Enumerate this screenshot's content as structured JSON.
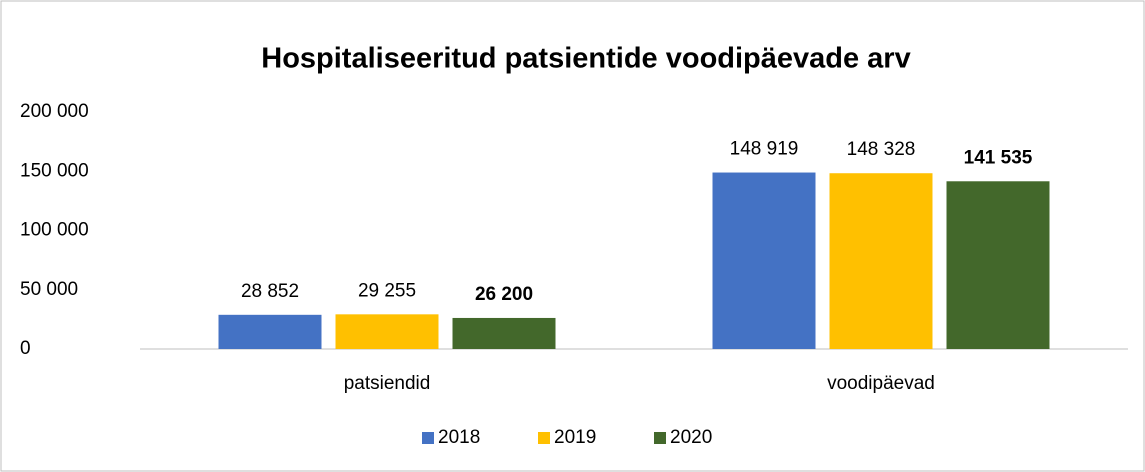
{
  "chart_data": {
    "type": "bar",
    "title": "Hospitaliseeritud patsientide voodipäevade arv",
    "categories": [
      "patsiendid",
      "voodipäevad"
    ],
    "series": [
      {
        "name": "2018",
        "color": "#4472c4",
        "values": [
          28852,
          148919
        ],
        "value_labels": [
          "28 852",
          "148 919"
        ]
      },
      {
        "name": "2019",
        "color": "#ffc000",
        "values": [
          29255,
          148328
        ],
        "value_labels": [
          "29 255",
          "148 328"
        ]
      },
      {
        "name": "2020",
        "color": "#43682b",
        "values": [
          26200,
          141535
        ],
        "value_labels": [
          "26 200",
          "141 535"
        ]
      }
    ],
    "ylim": [
      0,
      200000
    ],
    "yticks": [
      0,
      {
        "value": 50000,
        "label": "50 000"
      },
      {
        "value": 100000,
        "label": "100 000"
      },
      {
        "value": 150000,
        "label": "150 000"
      },
      {
        "value": 200000,
        "label": "200 000"
      }
    ],
    "grid": false,
    "legend": "bottom"
  }
}
